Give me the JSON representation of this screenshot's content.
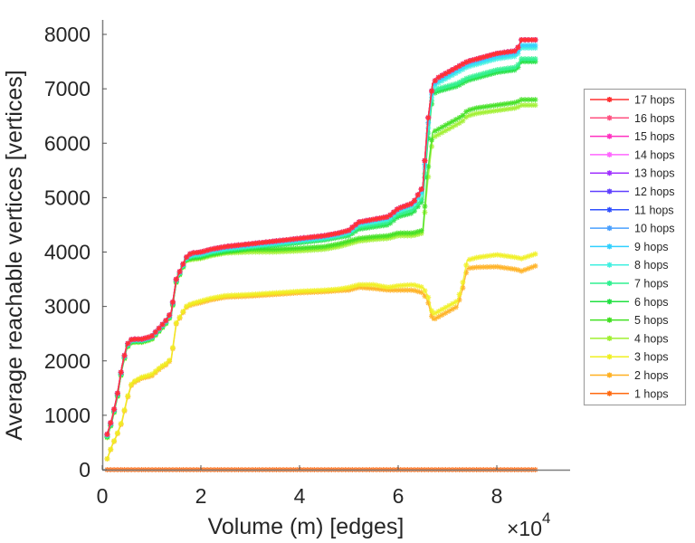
{
  "chart_data": {
    "type": "line",
    "title": "",
    "xlabel": "Volume (m) [edges]",
    "ylabel": "Average reachable vertices [vertices]",
    "x_multiplier_label": "×10",
    "x_multiplier_exponent": "4",
    "xlim": [
      0,
      95000
    ],
    "ylim": [
      0,
      8300
    ],
    "x_ticks": [
      0,
      20000,
      40000,
      60000,
      80000
    ],
    "x_tick_labels": [
      "0",
      "2",
      "4",
      "6",
      "8"
    ],
    "y_ticks": [
      0,
      1000,
      2000,
      3000,
      4000,
      5000,
      6000,
      7000,
      8000
    ],
    "y_tick_labels": [
      "0",
      "1000",
      "2000",
      "3000",
      "4000",
      "5000",
      "6000",
      "7000",
      "8000"
    ],
    "grid": false,
    "legend_position": "right",
    "x": [
      1000,
      2000,
      3000,
      4000,
      5000,
      6000,
      8000,
      10000,
      12000,
      13000,
      14000,
      15000,
      16000,
      17000,
      18000,
      20000,
      22000,
      25000,
      30000,
      35000,
      40000,
      45000,
      48000,
      50000,
      52000,
      55000,
      58000,
      60000,
      63000,
      65000,
      66000,
      67000,
      68000,
      70000,
      72000,
      73000,
      74000,
      76000,
      80000,
      84000,
      85000,
      88000
    ],
    "series": [
      {
        "name": "17 hops",
        "color": "#ff3030",
        "values": "same-as-12"
      },
      {
        "name": "16 hops",
        "color": "#ff5080",
        "values": "same-as-12"
      },
      {
        "name": "15 hops",
        "color": "#ff30c0",
        "values": "same-as-12"
      },
      {
        "name": "14 hops",
        "color": "#ff66ff",
        "values": "same-as-12"
      },
      {
        "name": "13 hops",
        "color": "#a030ff",
        "values": "same-as-12"
      },
      {
        "name": "12 hops",
        "color": "#6040ff",
        "values": [
          650,
          950,
          1350,
          1900,
          2300,
          2400,
          2400,
          2450,
          2650,
          2750,
          2900,
          3500,
          3700,
          3900,
          3980,
          4000,
          4050,
          4100,
          4150,
          4200,
          4250,
          4300,
          4350,
          4400,
          4550,
          4600,
          4650,
          4800,
          4900,
          5200,
          6400,
          7100,
          7200,
          7300,
          7400,
          7450,
          7500,
          7550,
          7650,
          7700,
          7900,
          7900
        ]
      },
      {
        "name": "11 hops",
        "color": "#3050ff",
        "values": "same-as-12"
      },
      {
        "name": "10 hops",
        "color": "#4aa0ff",
        "values": "same-as-12"
      },
      {
        "name": "9 hops",
        "color": "#30d0ff",
        "values": [
          640,
          940,
          1340,
          1890,
          2290,
          2390,
          2390,
          2440,
          2640,
          2740,
          2890,
          3490,
          3690,
          3890,
          3960,
          3980,
          4030,
          4080,
          4130,
          4180,
          4230,
          4280,
          4330,
          4380,
          4530,
          4580,
          4630,
          4780,
          4880,
          5150,
          6300,
          7050,
          7150,
          7250,
          7350,
          7400,
          7450,
          7500,
          7600,
          7650,
          7800,
          7800
        ]
      },
      {
        "name": "8 hops",
        "color": "#40f0e0",
        "values": [
          630,
          930,
          1330,
          1880,
          2280,
          2380,
          2380,
          2430,
          2630,
          2730,
          2880,
          3480,
          3680,
          3880,
          3940,
          3960,
          4010,
          4060,
          4110,
          4160,
          4210,
          4260,
          4310,
          4360,
          4500,
          4550,
          4600,
          4750,
          4850,
          5100,
          6200,
          7000,
          7100,
          7200,
          7300,
          7350,
          7400,
          7450,
          7550,
          7600,
          7750,
          7750
        ]
      },
      {
        "name": "7 hops",
        "color": "#30f090",
        "values": [
          620,
          920,
          1320,
          1870,
          2270,
          2370,
          2370,
          2420,
          2620,
          2720,
          2870,
          3470,
          3670,
          3870,
          3920,
          3940,
          3990,
          4040,
          4090,
          4140,
          4190,
          4240,
          4290,
          4330,
          4460,
          4500,
          4550,
          4700,
          4780,
          5000,
          6100,
          6950,
          7000,
          7050,
          7100,
          7150,
          7200,
          7250,
          7350,
          7400,
          7550,
          7550
        ]
      },
      {
        "name": "6 hops",
        "color": "#20e040",
        "values": [
          610,
          910,
          1310,
          1860,
          2260,
          2360,
          2360,
          2410,
          2610,
          2710,
          2860,
          3460,
          3660,
          3860,
          3900,
          3920,
          3970,
          4020,
          4070,
          4120,
          4170,
          4220,
          4270,
          4300,
          4420,
          4460,
          4500,
          4650,
          4720,
          4950,
          6000,
          6900,
          6950,
          7000,
          7050,
          7100,
          7150,
          7200,
          7300,
          7350,
          7500,
          7500
        ]
      },
      {
        "name": "5 hops",
        "color": "#40e020",
        "values": [
          600,
          900,
          1300,
          1850,
          2250,
          2350,
          2350,
          2400,
          2600,
          2700,
          2850,
          3450,
          3650,
          3850,
          3880,
          3900,
          3950,
          4000,
          4050,
          4050,
          4070,
          4100,
          4150,
          4200,
          4250,
          4280,
          4300,
          4350,
          4350,
          4400,
          5500,
          6200,
          6250,
          6350,
          6450,
          6500,
          6600,
          6650,
          6700,
          6750,
          6800,
          6800
        ]
      },
      {
        "name": "4 hops",
        "color": "#a0f030",
        "values": [
          590,
          890,
          1290,
          1840,
          2240,
          2340,
          2340,
          2390,
          2590,
          2690,
          2840,
          3440,
          3640,
          3840,
          3860,
          3880,
          3930,
          3980,
          4000,
          4000,
          4020,
          4050,
          4100,
          4150,
          4200,
          4230,
          4250,
          4300,
          4300,
          4350,
          5300,
          6100,
          6150,
          6250,
          6350,
          6400,
          6500,
          6550,
          6600,
          6650,
          6700,
          6700
        ]
      },
      {
        "name": "3 hops",
        "color": "#f0f020",
        "values": [
          200,
          450,
          650,
          900,
          1300,
          1600,
          1700,
          1750,
          1900,
          1950,
          2050,
          2700,
          2850,
          3000,
          3050,
          3100,
          3150,
          3200,
          3220,
          3250,
          3280,
          3300,
          3320,
          3350,
          3400,
          3400,
          3350,
          3380,
          3400,
          3350,
          3200,
          2850,
          2900,
          3000,
          3100,
          3400,
          3850,
          3900,
          3950,
          3900,
          3880,
          3970
        ]
      },
      {
        "name": "2 hops",
        "color": "#ffb020",
        "values": [
          200,
          440,
          640,
          880,
          1280,
          1580,
          1680,
          1720,
          1880,
          1930,
          2030,
          2680,
          2830,
          2980,
          3030,
          3070,
          3120,
          3170,
          3190,
          3220,
          3250,
          3270,
          3290,
          3300,
          3350,
          3330,
          3300,
          3300,
          3300,
          3250,
          3100,
          2750,
          2800,
          2900,
          3000,
          3300,
          3700,
          3720,
          3730,
          3680,
          3650,
          3750
        ]
      },
      {
        "name": "1 hops",
        "color": "#ff6a10",
        "values": [
          0,
          0,
          0,
          0,
          0,
          0,
          0,
          0,
          0,
          0,
          0,
          0,
          0,
          0,
          0,
          0,
          0,
          0,
          0,
          0,
          0,
          0,
          0,
          0,
          0,
          0,
          0,
          0,
          0,
          0,
          0,
          0,
          0,
          0,
          0,
          0,
          0,
          0,
          0,
          0,
          0,
          0
        ]
      }
    ]
  }
}
